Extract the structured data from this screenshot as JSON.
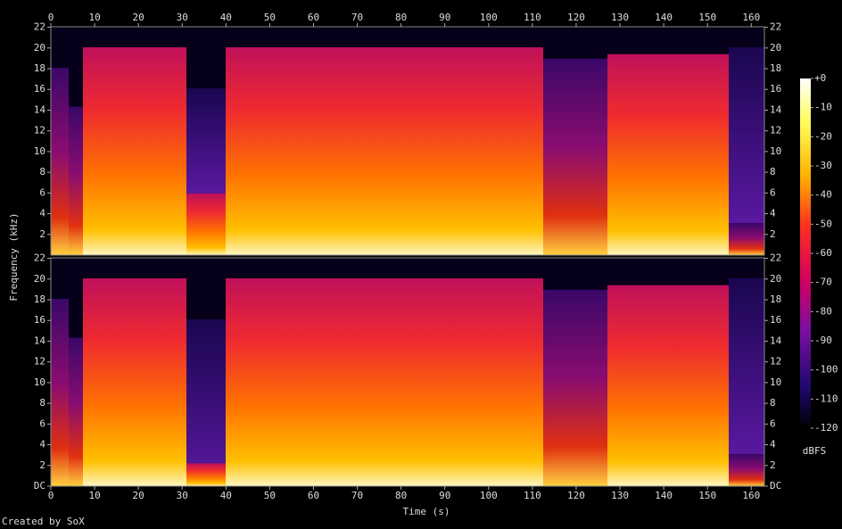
{
  "chart_data": {
    "type": "spectrogram",
    "x_label": "Time (s)",
    "y_label": "Frequency (kHz)",
    "xlim": [
      0,
      163
    ],
    "xticks": [
      0,
      10,
      20,
      30,
      40,
      50,
      60,
      70,
      80,
      90,
      100,
      110,
      120,
      130,
      140,
      150,
      160
    ],
    "ylim": [
      0,
      22.05
    ],
    "yticks": [
      {
        "value": 0,
        "label": "DC"
      },
      2,
      4,
      6,
      8,
      10,
      12,
      14,
      16,
      18,
      20,
      22
    ],
    "colorbar": {
      "label": "dBFS",
      "lim": [
        -120,
        0
      ],
      "ticks": [
        {
          "value": 0,
          "label": "+0"
        },
        -10,
        -20,
        -30,
        -40,
        -50,
        -60,
        -70,
        -80,
        -90,
        -100,
        -110,
        -120
      ]
    },
    "footer": "Created by SoX"
  }
}
